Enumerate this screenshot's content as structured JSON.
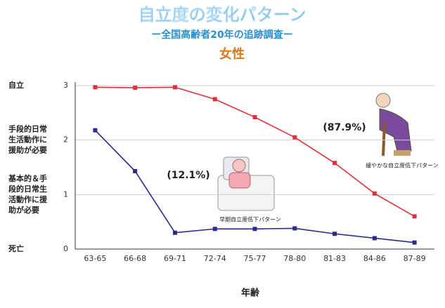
{
  "chart_data": {
    "type": "line",
    "title": "自立度の変化パターン",
    "subtitle": "ー全国高齢者20年の追跡調査ー",
    "subtitle2": "女性",
    "x_label": "年齢",
    "categories": [
      "63-65",
      "66-68",
      "69-71",
      "72-74",
      "75-77",
      "78-80",
      "81-83",
      "84-86",
      "87-89"
    ],
    "series": [
      {
        "color": "#e0303a",
        "values": [
          2.97,
          2.96,
          2.97,
          2.75,
          2.42,
          2.05,
          1.58,
          1.02,
          0.6
        ]
      },
      {
        "color": "#2a2a8c",
        "values": [
          2.18,
          1.43,
          0.3,
          0.37,
          0.37,
          0.38,
          0.28,
          0.2,
          0.12
        ]
      }
    ],
    "ylim": [
      0,
      3
    ],
    "yticks": [
      0,
      1,
      2,
      3
    ],
    "grid": true,
    "ytick_descriptions": [
      [
        "死亡"
      ],
      [
        "基本的＆手",
        "段的日常生",
        "活動作に援",
        "助が必要"
      ],
      [
        "手段的日常",
        "生活動作に",
        "援助が必要"
      ],
      [
        "自立"
      ]
    ],
    "annotations": [
      "(87.9%)",
      "緩やかな自立度低下パターン",
      "(12.1%)",
      "早期自立度低下パターン"
    ]
  }
}
